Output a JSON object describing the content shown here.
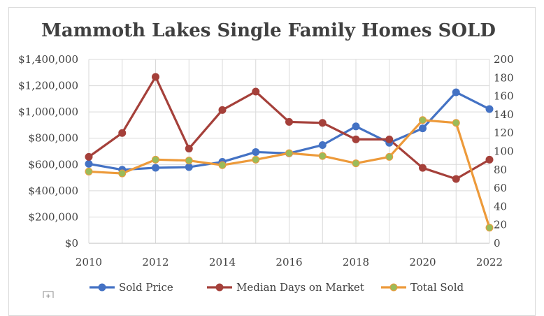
{
  "chart_data": {
    "type": "line",
    "title": "Mammoth Lakes Single Family Homes SOLD",
    "categories": [
      "2010",
      "2011",
      "2012",
      "2013",
      "2014",
      "2015",
      "2016",
      "2017",
      "2018",
      "2019",
      "2020",
      "2021",
      "2022"
    ],
    "x_tick_labels": [
      "2010",
      "2012",
      "2014",
      "2016",
      "2018",
      "2020",
      "2022"
    ],
    "left_axis": {
      "ylim": [
        0,
        1400000
      ],
      "tick_values": [
        0,
        200000,
        400000,
        600000,
        800000,
        1000000,
        1200000,
        1400000
      ],
      "tick_labels": [
        "$0",
        "$200,000",
        "$400,000",
        "$600,000",
        "$800,000",
        "$1,000,000",
        "$1,200,000",
        "$1,400,000"
      ]
    },
    "right_axis": {
      "ylim": [
        0,
        200
      ],
      "tick_values": [
        0,
        20,
        40,
        60,
        80,
        100,
        120,
        140,
        160,
        180,
        200
      ],
      "tick_labels": [
        "0",
        "20",
        "40",
        "60",
        "80",
        "100",
        "120",
        "140",
        "160",
        "180",
        "200"
      ]
    },
    "series": [
      {
        "name": "Sold Price",
        "axis": "left",
        "color": "#4472c4",
        "values": [
          605000,
          560000,
          575000,
          580000,
          620000,
          695000,
          685000,
          748000,
          890000,
          765000,
          875000,
          1150000,
          1022000
        ]
      },
      {
        "name": "Median Days on Market",
        "axis": "right",
        "color": "#a5403a",
        "values": [
          94,
          120,
          181,
          103,
          145,
          165,
          132,
          131,
          113,
          113,
          82,
          70,
          91
        ]
      },
      {
        "name": "Total Sold",
        "axis": "right",
        "color": "#ed9a3a",
        "marker_color": "#9bbb59",
        "values": [
          78,
          76,
          91,
          90,
          85,
          91,
          98,
          95,
          87,
          94,
          134,
          131,
          17
        ]
      }
    ],
    "legend": [
      "Sold Price",
      "Median Days on Market",
      "Total Sold"
    ],
    "legend_position": "bottom",
    "grid": true
  },
  "extra_glyph": "+"
}
